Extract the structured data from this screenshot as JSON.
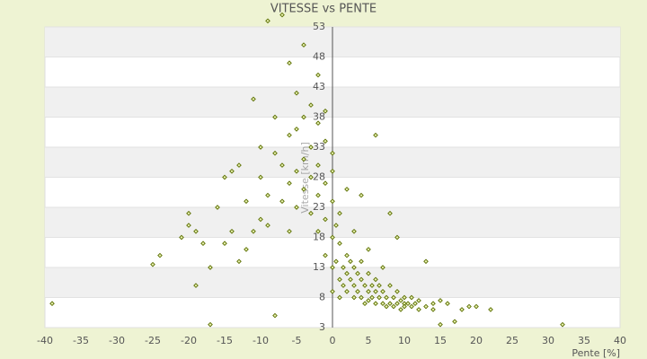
{
  "chart_data": {
    "type": "scatter",
    "title": "VITESSE vs PENTE",
    "xlabel": "Pente [%]",
    "ylabel": "Vitesse [km/h]",
    "color": "#5a6e00",
    "grid": true,
    "xlim": [
      -40,
      40
    ],
    "ylim": [
      3,
      53
    ],
    "xticks": [
      -40,
      -35,
      -30,
      -25,
      -20,
      -15,
      -10,
      -5,
      0,
      5,
      10,
      15,
      20,
      25,
      30,
      35,
      40
    ],
    "yticks": [
      3,
      8,
      13,
      18,
      23,
      28,
      33,
      38,
      43,
      48,
      53
    ],
    "x": [
      -39,
      -25,
      -24,
      -21,
      -20,
      -20,
      -19,
      -19,
      -18,
      -17,
      -17,
      -16,
      -15,
      -15,
      -14,
      -14,
      -13,
      -13,
      -12,
      -12,
      -11,
      -11,
      -10,
      -10,
      -10,
      -9,
      -9,
      -9,
      -8,
      -8,
      -8,
      -7,
      -7,
      -7,
      -6,
      -6,
      -6,
      -6,
      -5,
      -5,
      -5,
      -5,
      -4,
      -4,
      -4,
      -4,
      -3,
      -3,
      -3,
      -3,
      -2,
      -2,
      -2,
      -2,
      -2,
      -1,
      -1,
      -1,
      -1,
      -1,
      0,
      0,
      0,
      0,
      0,
      0,
      0.5,
      0.5,
      1,
      1,
      1,
      1,
      1.5,
      1.5,
      2,
      2,
      2,
      2,
      2.5,
      2.5,
      3,
      3,
      3,
      3,
      3.5,
      3.5,
      4,
      4,
      4,
      4,
      4.5,
      4.5,
      5,
      5,
      5,
      5,
      5.5,
      5.5,
      6,
      6,
      6,
      6,
      6.5,
      6.5,
      7,
      7,
      7,
      7.5,
      7.5,
      8,
      8,
      8,
      8.5,
      8.5,
      9,
      9,
      9,
      9.5,
      9.5,
      10,
      10,
      10,
      10.5,
      11,
      11,
      11.5,
      12,
      12,
      13,
      13,
      14,
      14,
      15,
      15,
      16,
      17,
      18,
      19,
      20,
      22,
      32
    ],
    "values": [
      7,
      13.5,
      15,
      18,
      22,
      20,
      10,
      19,
      17,
      3.5,
      13,
      23,
      17,
      28,
      29,
      19,
      30,
      14,
      24,
      16,
      19,
      41,
      21,
      28,
      33,
      54,
      25,
      20,
      32,
      38,
      5,
      55,
      24,
      30,
      27,
      35,
      19,
      47,
      36,
      29,
      23,
      42,
      31,
      26,
      38,
      50,
      33,
      28,
      22,
      40,
      37,
      30,
      25,
      19,
      45,
      27,
      34,
      21,
      39,
      15,
      24,
      29,
      18,
      13,
      32,
      9,
      20,
      14,
      17,
      11,
      22,
      8,
      13,
      10,
      15,
      12,
      9,
      26,
      11,
      14,
      10,
      13,
      8,
      19,
      12,
      9,
      11,
      14,
      8,
      25,
      10,
      7,
      12,
      9,
      16,
      7.5,
      10,
      8,
      11,
      7,
      9,
      35,
      8,
      10,
      7,
      9,
      13,
      8,
      6.5,
      7,
      10,
      22,
      6.5,
      8,
      7,
      9,
      18,
      6,
      7.5,
      7,
      8,
      6.5,
      7,
      6.5,
      8,
      7,
      6,
      7.5,
      6.5,
      14,
      7,
      6,
      7.5,
      3.5,
      7,
      4,
      6,
      6.5,
      6.5,
      6,
      3.5
    ]
  }
}
